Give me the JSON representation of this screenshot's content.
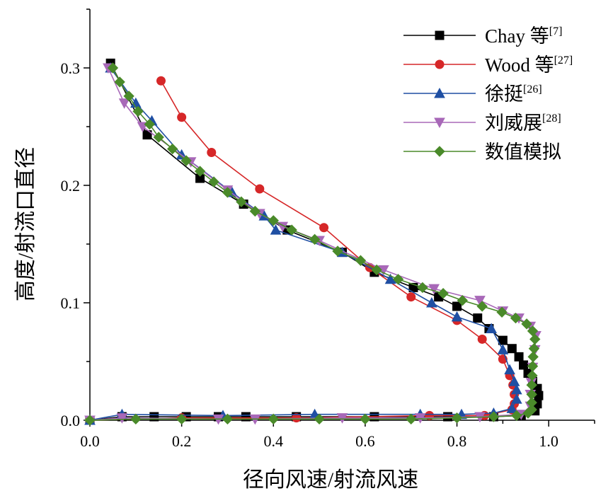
{
  "chart_data": {
    "type": "line",
    "xlabel": "径向风速/射流风速",
    "ylabel": "高度/射流口直径",
    "xlim": [
      0,
      1.1
    ],
    "ylim": [
      0,
      0.35
    ],
    "x_ticks": [
      "0.0",
      "0.2",
      "0.4",
      "0.6",
      "0.8",
      "1.0"
    ],
    "y_ticks": [
      "0.0",
      "0.1",
      "0.2",
      "0.3"
    ],
    "grid": false,
    "legend_position": "top-right",
    "series": [
      {
        "name": "Chay 等",
        "ref": "[7]",
        "color": "#000000",
        "marker": "square",
        "points": [
          [
            0.0,
            0.0
          ],
          [
            0.07,
            0.003
          ],
          [
            0.14,
            0.003
          ],
          [
            0.21,
            0.003
          ],
          [
            0.28,
            0.003
          ],
          [
            0.34,
            0.003
          ],
          [
            0.45,
            0.003
          ],
          [
            0.62,
            0.003
          ],
          [
            0.78,
            0.003
          ],
          [
            0.88,
            0.003
          ],
          [
            0.94,
            0.004
          ],
          [
            0.97,
            0.008
          ],
          [
            0.975,
            0.014
          ],
          [
            0.978,
            0.021
          ],
          [
            0.975,
            0.027
          ],
          [
            0.965,
            0.033
          ],
          [
            0.955,
            0.04
          ],
          [
            0.945,
            0.047
          ],
          [
            0.935,
            0.054
          ],
          [
            0.92,
            0.061
          ],
          [
            0.9,
            0.068
          ],
          [
            0.87,
            0.078
          ],
          [
            0.845,
            0.087
          ],
          [
            0.8,
            0.097
          ],
          [
            0.76,
            0.105
          ],
          [
            0.705,
            0.113
          ],
          [
            0.62,
            0.126
          ],
          [
            0.55,
            0.143
          ],
          [
            0.43,
            0.162
          ],
          [
            0.335,
            0.184
          ],
          [
            0.24,
            0.206
          ],
          [
            0.125,
            0.243
          ],
          [
            0.045,
            0.304
          ]
        ]
      },
      {
        "name": "Wood 等",
        "ref": "[27]",
        "color": "#d62728",
        "marker": "circle",
        "points": [
          [
            0.0,
            0.0
          ],
          [
            0.2,
            0.002
          ],
          [
            0.45,
            0.002
          ],
          [
            0.74,
            0.004
          ],
          [
            0.86,
            0.004
          ],
          [
            0.92,
            0.009
          ],
          [
            0.925,
            0.014
          ],
          [
            0.925,
            0.022
          ],
          [
            0.922,
            0.03
          ],
          [
            0.915,
            0.038
          ],
          [
            0.9,
            0.052
          ],
          [
            0.855,
            0.069
          ],
          [
            0.8,
            0.085
          ],
          [
            0.7,
            0.105
          ],
          [
            0.61,
            0.13
          ],
          [
            0.51,
            0.164
          ],
          [
            0.37,
            0.197
          ],
          [
            0.265,
            0.228
          ],
          [
            0.2,
            0.258
          ],
          [
            0.155,
            0.289
          ]
        ]
      },
      {
        "name": "徐挺",
        "ref": "[26]",
        "color": "#1f4fa3",
        "marker": "triangle-up",
        "points": [
          [
            0.0,
            0.0
          ],
          [
            0.07,
            0.005
          ],
          [
            0.29,
            0.004
          ],
          [
            0.49,
            0.005
          ],
          [
            0.72,
            0.005
          ],
          [
            0.81,
            0.005
          ],
          [
            0.88,
            0.006
          ],
          [
            0.92,
            0.01
          ],
          [
            0.93,
            0.018
          ],
          [
            0.93,
            0.026
          ],
          [
            0.925,
            0.033
          ],
          [
            0.915,
            0.043
          ],
          [
            0.9,
            0.06
          ],
          [
            0.875,
            0.078
          ],
          [
            0.8,
            0.088
          ],
          [
            0.745,
            0.1
          ],
          [
            0.655,
            0.12
          ],
          [
            0.55,
            0.143
          ],
          [
            0.405,
            0.162
          ],
          [
            0.38,
            0.174
          ],
          [
            0.31,
            0.194
          ],
          [
            0.2,
            0.226
          ],
          [
            0.135,
            0.255
          ],
          [
            0.1,
            0.27
          ],
          [
            0.045,
            0.3
          ]
        ]
      },
      {
        "name": "刘威展",
        "ref": "[28]",
        "color": "#a868b8",
        "marker": "triangle-down",
        "points": [
          [
            0.0,
            0.0
          ],
          [
            0.07,
            0.002
          ],
          [
            0.28,
            0.001
          ],
          [
            0.36,
            0.001
          ],
          [
            0.55,
            0.002
          ],
          [
            0.72,
            0.002
          ],
          [
            0.85,
            0.003
          ],
          [
            0.94,
            0.005
          ],
          [
            0.96,
            0.012
          ],
          [
            0.96,
            0.022
          ],
          [
            0.962,
            0.032
          ],
          [
            0.965,
            0.045
          ],
          [
            0.97,
            0.06
          ],
          [
            0.972,
            0.072
          ],
          [
            0.96,
            0.08
          ],
          [
            0.935,
            0.087
          ],
          [
            0.9,
            0.093
          ],
          [
            0.85,
            0.102
          ],
          [
            0.75,
            0.112
          ],
          [
            0.64,
            0.128
          ],
          [
            0.5,
            0.153
          ],
          [
            0.42,
            0.165
          ],
          [
            0.37,
            0.176
          ],
          [
            0.3,
            0.196
          ],
          [
            0.22,
            0.22
          ],
          [
            0.115,
            0.25
          ],
          [
            0.075,
            0.27
          ],
          [
            0.04,
            0.3
          ]
        ]
      },
      {
        "name": "数值模拟",
        "ref": "",
        "color": "#4a8a2a",
        "marker": "diamond",
        "points": [
          [
            0.0,
            0.0
          ],
          [
            0.1,
            0.001
          ],
          [
            0.2,
            0.001
          ],
          [
            0.3,
            0.001
          ],
          [
            0.4,
            0.001
          ],
          [
            0.5,
            0.001
          ],
          [
            0.6,
            0.001
          ],
          [
            0.7,
            0.001
          ],
          [
            0.8,
            0.002
          ],
          [
            0.88,
            0.003
          ],
          [
            0.93,
            0.004
          ],
          [
            0.955,
            0.006
          ],
          [
            0.963,
            0.009
          ],
          [
            0.963,
            0.015
          ],
          [
            0.963,
            0.022
          ],
          [
            0.963,
            0.03
          ],
          [
            0.964,
            0.038
          ],
          [
            0.965,
            0.046
          ],
          [
            0.966,
            0.054
          ],
          [
            0.968,
            0.061
          ],
          [
            0.97,
            0.069
          ],
          [
            0.965,
            0.076
          ],
          [
            0.952,
            0.082
          ],
          [
            0.928,
            0.087
          ],
          [
            0.898,
            0.092
          ],
          [
            0.855,
            0.097
          ],
          [
            0.812,
            0.102
          ],
          [
            0.77,
            0.108
          ],
          [
            0.725,
            0.113
          ],
          [
            0.672,
            0.12
          ],
          [
            0.625,
            0.128
          ],
          [
            0.59,
            0.136
          ],
          [
            0.54,
            0.144
          ],
          [
            0.49,
            0.154
          ],
          [
            0.44,
            0.162
          ],
          [
            0.4,
            0.17
          ],
          [
            0.36,
            0.178
          ],
          [
            0.33,
            0.186
          ],
          [
            0.3,
            0.194
          ],
          [
            0.27,
            0.203
          ],
          [
            0.24,
            0.212
          ],
          [
            0.21,
            0.221
          ],
          [
            0.18,
            0.231
          ],
          [
            0.15,
            0.241
          ],
          [
            0.13,
            0.252
          ],
          [
            0.105,
            0.263
          ],
          [
            0.085,
            0.276
          ],
          [
            0.065,
            0.288
          ],
          [
            0.05,
            0.3
          ]
        ]
      }
    ]
  }
}
